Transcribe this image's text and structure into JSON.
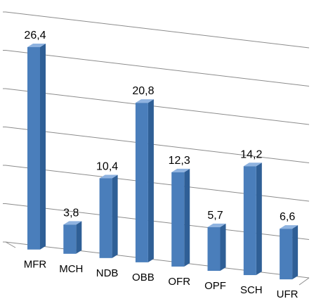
{
  "chart_data": {
    "type": "bar",
    "style": "3d-clustered-column",
    "categories": [
      "MFR",
      "MCH",
      "NDB",
      "OBB",
      "OFR",
      "OPF",
      "SCH",
      "UFR"
    ],
    "values": [
      26.4,
      3.8,
      10.4,
      20.8,
      12.3,
      5.7,
      14.2,
      6.6
    ],
    "data_labels": [
      "26,4",
      "3,8",
      "10,4",
      "20,8",
      "12,3",
      "5,7",
      "14,2",
      "6,6"
    ],
    "title": "",
    "xlabel": "",
    "ylabel": "",
    "ylim": [
      0,
      30
    ],
    "y_tick_step": 5,
    "y_tick_labels_visible": false,
    "grid": true,
    "legend": "none",
    "colors": {
      "bar_front": "#4a7ebb",
      "bar_side": "#2f5f96",
      "bar_top": "#8fb3e0",
      "gridline": "#8c8c8c"
    }
  }
}
